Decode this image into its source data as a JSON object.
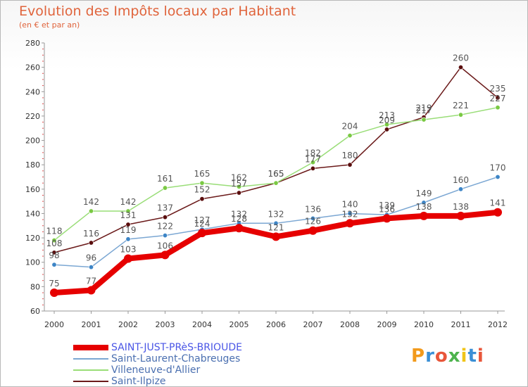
{
  "header": {
    "title": "Evolution des Impôts locaux par Habitant",
    "subtitle": "(en € et par an)"
  },
  "logo": {
    "text": "Proxiti",
    "letters": [
      "P",
      "r",
      "o",
      "x",
      "i",
      "t",
      "i"
    ]
  },
  "chart_data": {
    "type": "line",
    "title": "Evolution des Impôts locaux par Habitant",
    "subtitle": "(en € et par an)",
    "xlabel": "",
    "ylabel": "",
    "x": [
      "2000",
      "2001",
      "2002",
      "2003",
      "2004",
      "2005",
      "2006",
      "2007",
      "2008",
      "2009",
      "2010",
      "2011",
      "2012"
    ],
    "ylim": [
      60,
      280
    ],
    "yticks": [
      60,
      80,
      100,
      120,
      140,
      160,
      180,
      200,
      220,
      240,
      260,
      280
    ],
    "grid": false,
    "legend_position": "bottom-left",
    "series": [
      {
        "name": "Saint-Ilpize",
        "color": "#6b1a1a",
        "marker": "#5a0e0e",
        "emphasis": false,
        "values": [
          108,
          116,
          131,
          137,
          152,
          157,
          165,
          177,
          180,
          209,
          219,
          260,
          235
        ]
      },
      {
        "name": "Villeneuve-d'Allier",
        "color": "#99dd77",
        "marker": "#7ac943",
        "emphasis": false,
        "values": [
          118,
          142,
          142,
          161,
          165,
          162,
          165,
          182,
          204,
          213,
          217,
          221,
          227
        ]
      },
      {
        "name": "Saint-Laurent-Chabreuges",
        "color": "#7ba7d3",
        "marker": "#3d85c6",
        "emphasis": false,
        "values": [
          98,
          96,
          119,
          122,
          127,
          132,
          132,
          136,
          140,
          139,
          149,
          160,
          170
        ]
      },
      {
        "name": "SAINT-JUST-PRèS-BRIOUDE",
        "color": "#e60000",
        "marker": "#e60000",
        "emphasis": true,
        "values": [
          75,
          77,
          103,
          106,
          124,
          128,
          121,
          126,
          132,
          136,
          138,
          138,
          141
        ]
      }
    ],
    "legend_order": [
      "SAINT-JUST-PRèS-BRIOUDE",
      "Saint-Laurent-Chabreuges",
      "Villeneuve-d'Allier",
      "Saint-Ilpize"
    ]
  }
}
